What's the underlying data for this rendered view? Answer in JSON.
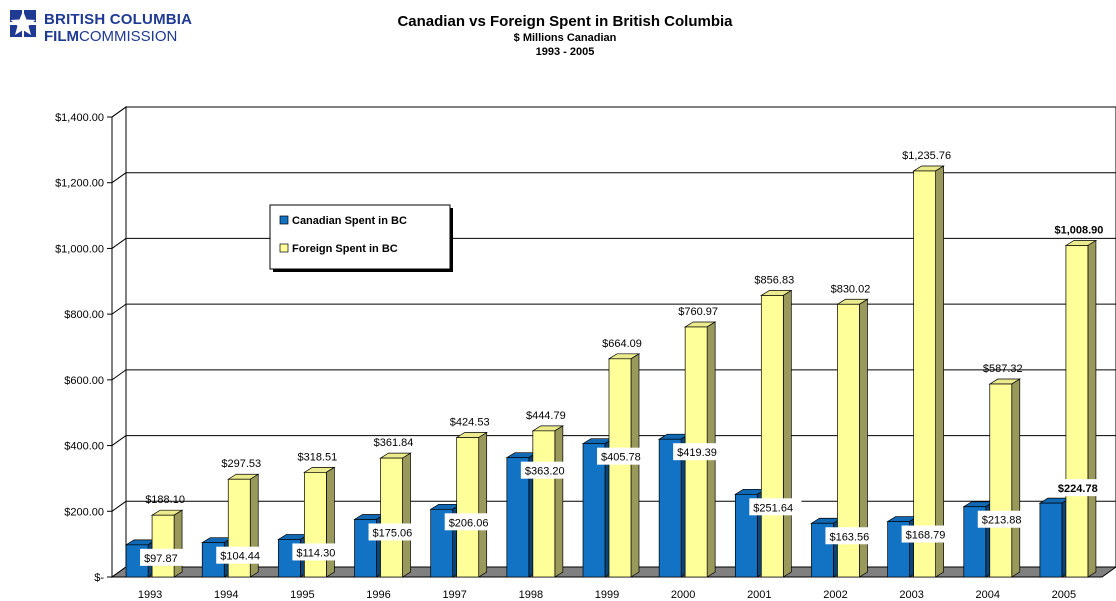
{
  "brand": {
    "line1": "BRITISH COLUMBIA",
    "line2_bold": "FILM",
    "line2_rest": "COMMISSION"
  },
  "chart_data": {
    "type": "bar",
    "title": "Canadian vs Foreign Spent in British Columbia",
    "subtitle": "$ Millions Canadian",
    "period": "1993 - 2005",
    "categories": [
      "1993",
      "1994",
      "1995",
      "1996",
      "1997",
      "1998",
      "1999",
      "2000",
      "2001",
      "2002",
      "2003",
      "2004",
      "2005"
    ],
    "series": [
      {
        "name": "Canadian Spent in BC",
        "color": "#1272c4",
        "values": [
          97.87,
          104.44,
          114.3,
          175.06,
          206.06,
          363.2,
          405.78,
          419.39,
          251.64,
          163.56,
          168.79,
          213.88,
          224.78
        ],
        "labels": [
          "$97.87",
          "$104.44",
          "$114.30",
          "$175.06",
          "$206.06",
          "$363.20",
          "$405.78",
          "$419.39",
          "$251.64",
          "$163.56",
          "$168.79",
          "$213.88",
          "$224.78"
        ]
      },
      {
        "name": "Foreign Spent in BC",
        "color": "#ffff99",
        "values": [
          188.1,
          297.53,
          318.51,
          361.84,
          424.53,
          444.79,
          664.09,
          760.97,
          856.83,
          830.02,
          1235.76,
          587.32,
          1008.9
        ],
        "labels": [
          "$188.10",
          "$297.53",
          "$318.51",
          "$361.84",
          "$424.53",
          "$444.79",
          "$664.09",
          "$760.97",
          "$856.83",
          "$830.02",
          "$1,235.76",
          "$587.32",
          "$1,008.90"
        ]
      }
    ],
    "y_ticks": [
      0,
      200,
      400,
      600,
      800,
      1000,
      1200,
      1400
    ],
    "y_tick_labels": [
      "$-",
      "$200.00",
      "$400.00",
      "$600.00",
      "$800.00",
      "$1,000.00",
      "$1,200.00",
      "$1,400.00"
    ],
    "ylim": [
      0,
      1400
    ],
    "grid": true,
    "legend_position": "top-left",
    "floor_color": "#808080"
  }
}
